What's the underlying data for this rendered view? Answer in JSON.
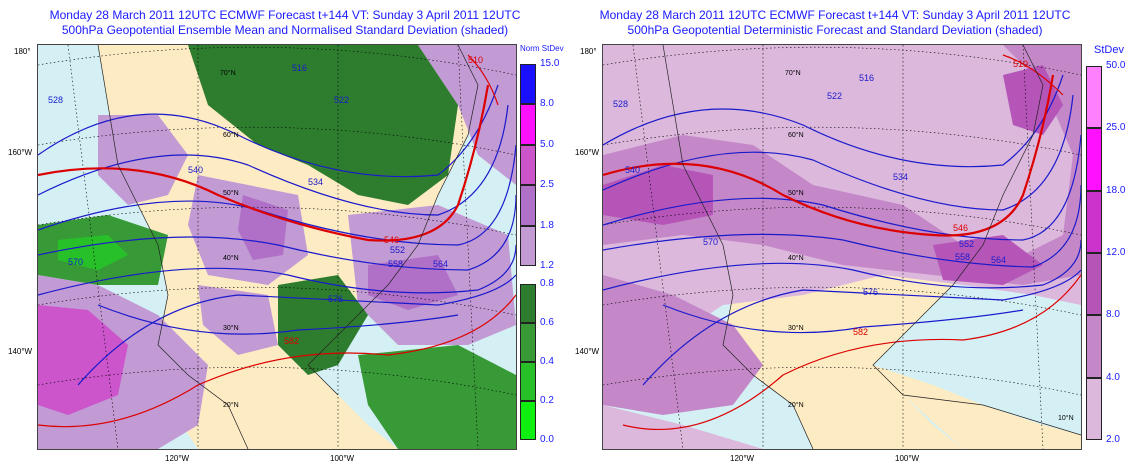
{
  "left": {
    "title1": "Monday 28 March 2011 12UTC ECMWF Forecast t+144  VT: Sunday 3 April 2011 12UTC",
    "title2": "500hPa Geopotential Ensemble Mean and Normalised Standard Deviation (shaded)",
    "colorbar_title": "Norm StDev",
    "colorbar_upper": [
      {
        "value": "15.0",
        "color": "#1a10ff"
      },
      {
        "value": "8.0",
        "color": "#ff10ff"
      },
      {
        "value": "5.0",
        "color": "#cc55cc"
      },
      {
        "value": "2.5",
        "color": "#b070c8"
      },
      {
        "value": "1.8",
        "color": "#c29ad4"
      }
    ],
    "colorbar_upper_bottom": "1.2",
    "colorbar_lower": [
      {
        "value": "0.8",
        "color": "#2e7d2e"
      },
      {
        "value": "0.6",
        "color": "#379a37"
      },
      {
        "value": "0.4",
        "color": "#28c028"
      },
      {
        "value": "0.2",
        "color": "#10f010"
      }
    ],
    "colorbar_lower_bottom": "0.0",
    "contour_labels": [
      "528",
      "540",
      "552",
      "558",
      "564",
      "570",
      "576",
      "582",
      "534",
      "546",
      "522",
      "510",
      "516"
    ],
    "lat_labels": [
      "180°",
      "160°W",
      "140°W",
      "60°N",
      "50°N",
      "40°N",
      "30°N",
      "20°N",
      "70°N"
    ],
    "lon_labels": [
      "120°W",
      "100°W"
    ]
  },
  "right": {
    "title1": "Monday 28 March 2011 12UTC ECMWF Forecast t+144  VT: Sunday 3 April 2011 12UTC",
    "title2": "500hPa Geopotential Deterministic Forecast and Standard Deviation (shaded)",
    "colorbar_title": "StDev",
    "colorbar": [
      {
        "value": "50.0",
        "color": "#ff80ff"
      },
      {
        "value": "25.0",
        "color": "#ff10ff"
      },
      {
        "value": "18.0",
        "color": "#cc33cc"
      },
      {
        "value": "12.0",
        "color": "#b555b8"
      },
      {
        "value": "8.0",
        "color": "#c488c8"
      },
      {
        "value": "4.0",
        "color": "#dcb8dc"
      }
    ],
    "colorbar_bottom": "2.0",
    "contour_labels": [
      "528",
      "540",
      "552",
      "558",
      "564",
      "570",
      "576",
      "582",
      "534",
      "546",
      "522",
      "510",
      "516"
    ],
    "lat_labels": [
      "180°",
      "160°W",
      "140°W",
      "60°N",
      "50°N",
      "40°N",
      "30°N",
      "20°N",
      "10°N",
      "70°N"
    ],
    "lon_labels": [
      "120°W",
      "100°W"
    ]
  }
}
